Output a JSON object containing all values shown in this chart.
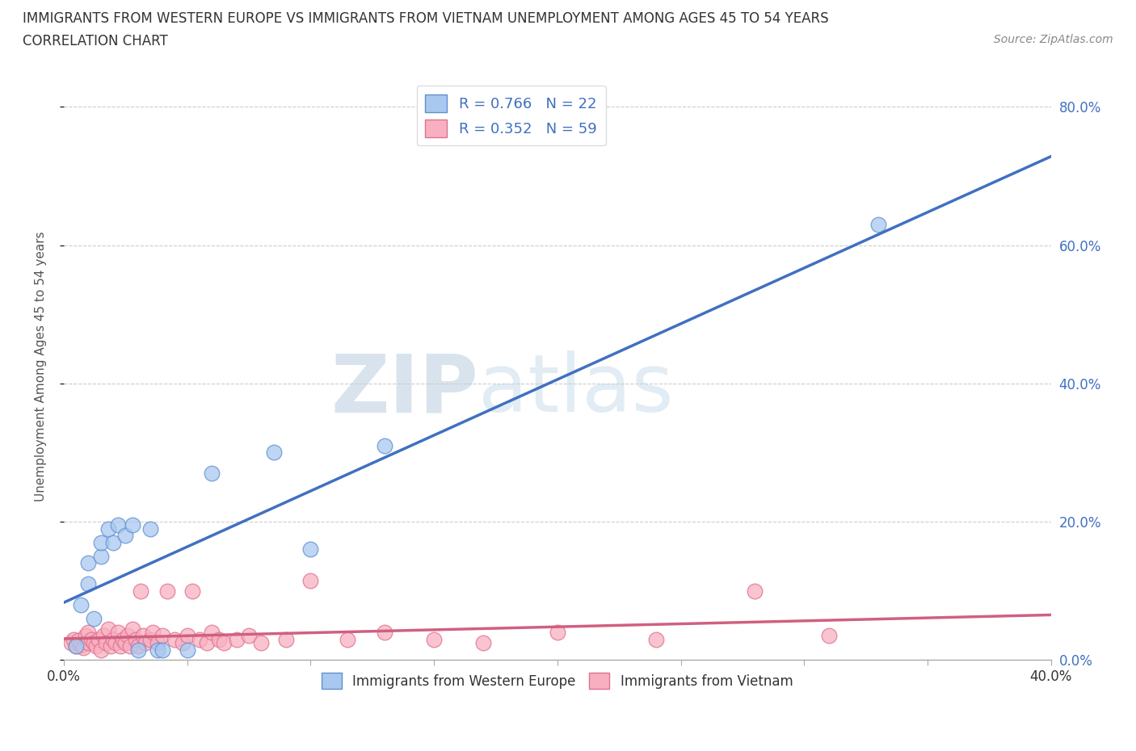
{
  "title_line1": "IMMIGRANTS FROM WESTERN EUROPE VS IMMIGRANTS FROM VIETNAM UNEMPLOYMENT AMONG AGES 45 TO 54 YEARS",
  "title_line2": "CORRELATION CHART",
  "source_text": "Source: ZipAtlas.com",
  "ylabel": "Unemployment Among Ages 45 to 54 years",
  "xlim": [
    0.0,
    0.4
  ],
  "ylim": [
    0.0,
    0.85
  ],
  "x_ticks": [
    0.0,
    0.05,
    0.1,
    0.15,
    0.2,
    0.25,
    0.3,
    0.35,
    0.4
  ],
  "y_ticks": [
    0.0,
    0.2,
    0.4,
    0.6,
    0.8
  ],
  "series1_name": "Immigrants from Western Europe",
  "series1_R": 0.766,
  "series1_N": 22,
  "series1_color": "#A8C8F0",
  "series1_edge_color": "#6090D0",
  "series1_line_color": "#4070C0",
  "series2_name": "Immigrants from Vietnam",
  "series2_R": 0.352,
  "series2_N": 59,
  "series2_color": "#F8B0C0",
  "series2_edge_color": "#E07090",
  "series2_line_color": "#D06080",
  "watermark_zip": "ZIP",
  "watermark_atlas": "atlas",
  "western_europe_x": [
    0.005,
    0.007,
    0.01,
    0.01,
    0.012,
    0.015,
    0.015,
    0.018,
    0.02,
    0.022,
    0.025,
    0.028,
    0.03,
    0.035,
    0.038,
    0.04,
    0.05,
    0.06,
    0.085,
    0.1,
    0.13,
    0.33
  ],
  "western_europe_y": [
    0.02,
    0.08,
    0.11,
    0.14,
    0.06,
    0.15,
    0.17,
    0.19,
    0.17,
    0.195,
    0.18,
    0.195,
    0.015,
    0.19,
    0.015,
    0.015,
    0.015,
    0.27,
    0.3,
    0.16,
    0.31,
    0.63
  ],
  "vietnam_x": [
    0.003,
    0.004,
    0.005,
    0.006,
    0.007,
    0.008,
    0.009,
    0.01,
    0.01,
    0.011,
    0.012,
    0.013,
    0.014,
    0.015,
    0.016,
    0.017,
    0.018,
    0.019,
    0.02,
    0.021,
    0.022,
    0.023,
    0.024,
    0.025,
    0.026,
    0.027,
    0.028,
    0.029,
    0.03,
    0.031,
    0.032,
    0.033,
    0.035,
    0.036,
    0.038,
    0.04,
    0.042,
    0.045,
    0.048,
    0.05,
    0.052,
    0.055,
    0.058,
    0.06,
    0.063,
    0.065,
    0.07,
    0.075,
    0.08,
    0.09,
    0.1,
    0.115,
    0.13,
    0.15,
    0.17,
    0.2,
    0.24,
    0.28,
    0.31
  ],
  "vietnam_y": [
    0.025,
    0.03,
    0.02,
    0.028,
    0.022,
    0.018,
    0.035,
    0.025,
    0.04,
    0.03,
    0.025,
    0.02,
    0.03,
    0.015,
    0.035,
    0.025,
    0.045,
    0.02,
    0.03,
    0.025,
    0.04,
    0.02,
    0.03,
    0.025,
    0.035,
    0.02,
    0.045,
    0.03,
    0.02,
    0.1,
    0.035,
    0.025,
    0.03,
    0.04,
    0.025,
    0.035,
    0.1,
    0.03,
    0.025,
    0.035,
    0.1,
    0.03,
    0.025,
    0.04,
    0.03,
    0.025,
    0.03,
    0.035,
    0.025,
    0.03,
    0.115,
    0.03,
    0.04,
    0.03,
    0.025,
    0.04,
    0.03,
    0.1,
    0.035
  ]
}
